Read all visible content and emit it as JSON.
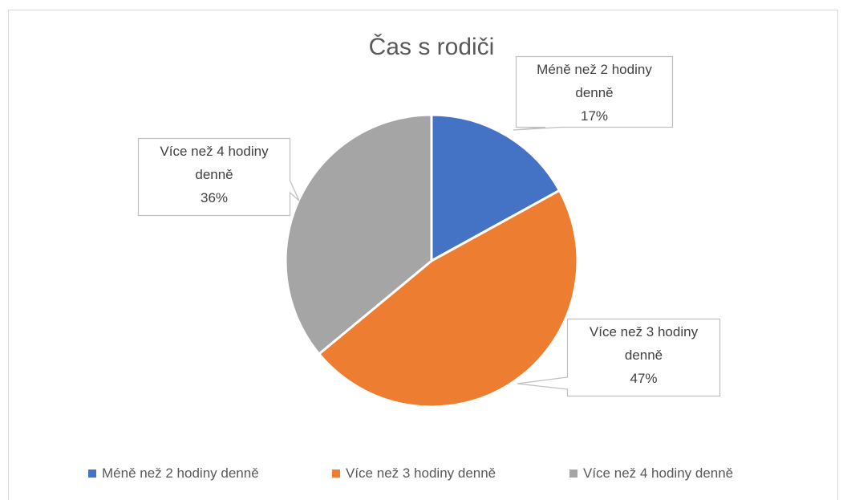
{
  "chart_data": {
    "type": "pie",
    "title": "Čas s rodiči",
    "categories": [
      "Méně než 2 hodiny denně",
      "Více než 3 hodiny denně",
      "Více než 4 hodiny denně"
    ],
    "values": [
      17,
      47,
      36
    ],
    "value_labels": [
      "17%",
      "47%",
      "36%"
    ],
    "colors": [
      "#4472c4",
      "#ed7d31",
      "#a5a5a5"
    ],
    "legend": "bottom"
  }
}
